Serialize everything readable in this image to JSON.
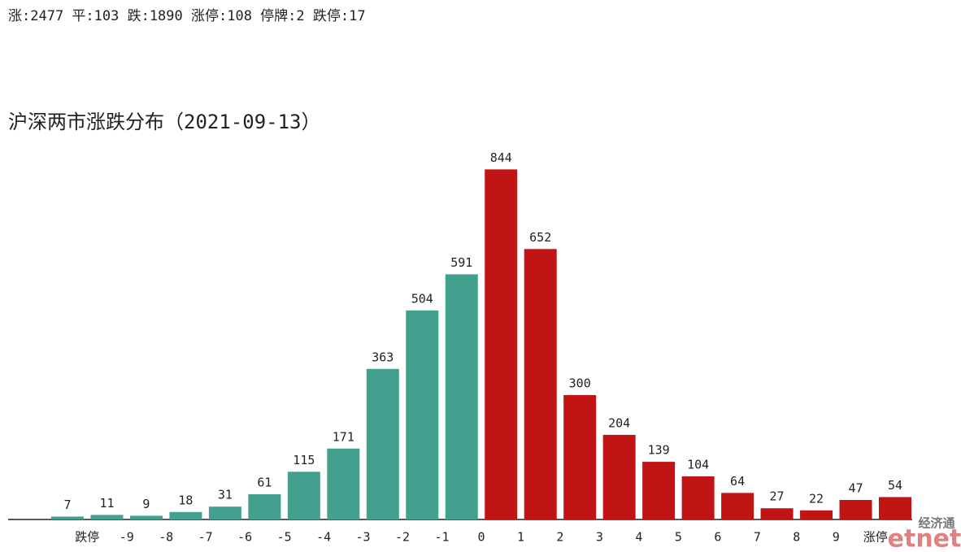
{
  "chart_data": {
    "type": "bar",
    "subtitle": "涨:2477 平:103 跌:1890 涨停:108 停牌:2 跌停:17",
    "title": "沪深两市涨跌分布（2021-09-13）",
    "categories": [
      null,
      null,
      null,
      null,
      null,
      null,
      null,
      null,
      null,
      null,
      null,
      null,
      null,
      null,
      null,
      null,
      null,
      null,
      null,
      null,
      null,
      null
    ],
    "values": [
      7,
      11,
      9,
      18,
      31,
      61,
      115,
      171,
      363,
      504,
      591,
      844,
      652,
      300,
      204,
      139,
      104,
      64,
      27,
      22,
      47,
      54
    ],
    "colors": [
      "#43a08e",
      "#43a08e",
      "#43a08e",
      "#43a08e",
      "#43a08e",
      "#43a08e",
      "#43a08e",
      "#43a08e",
      "#43a08e",
      "#43a08e",
      "#43a08e",
      "#c11414",
      "#c11414",
      "#c11414",
      "#c11414",
      "#c11414",
      "#c11414",
      "#c11414",
      "#c11414",
      "#c11414",
      "#c11414",
      "#c11414"
    ],
    "edge_labels": [
      "跌停",
      "-9",
      "-8",
      "-7",
      "-6",
      "-5",
      "-4",
      "-3",
      "-2",
      "-1",
      "0",
      "1",
      "2",
      "3",
      "4",
      "5",
      "6",
      "7",
      "8",
      "9",
      "涨停"
    ],
    "ylim": [
      0,
      880
    ]
  },
  "watermark": {
    "cn": "经济通",
    "en": "etnet"
  }
}
